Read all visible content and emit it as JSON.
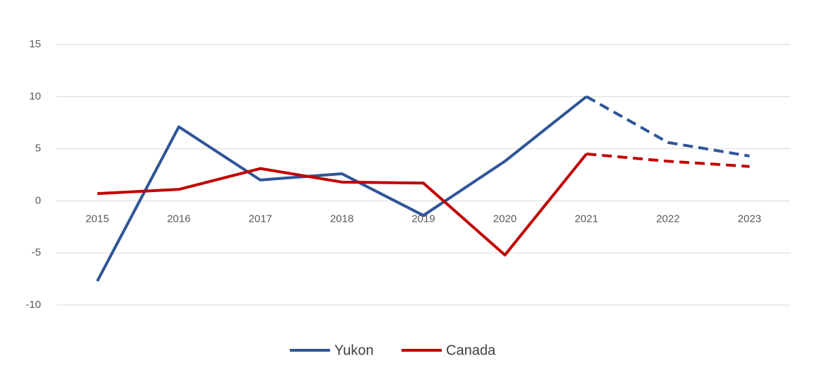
{
  "chart_data": {
    "type": "line",
    "categories": [
      "2015",
      "2016",
      "2017",
      "2018",
      "2019",
      "2020",
      "2021",
      "2022",
      "2023"
    ],
    "series": [
      {
        "name": "Yukon",
        "color": "#2f5597",
        "values": [
          -7.7,
          7.1,
          2.0,
          2.6,
          -1.4,
          3.8,
          10.0,
          5.6,
          4.3
        ]
      },
      {
        "name": "Canada",
        "color": "#c00000",
        "values": [
          0.7,
          1.1,
          3.1,
          1.8,
          1.7,
          -5.2,
          4.5,
          3.8,
          3.3
        ]
      }
    ],
    "dashed_from": "2021",
    "ylim": [
      -10,
      15
    ],
    "yticks": [
      -10,
      -5,
      0,
      5,
      10,
      15
    ],
    "grid": true,
    "legend": "bottom"
  }
}
